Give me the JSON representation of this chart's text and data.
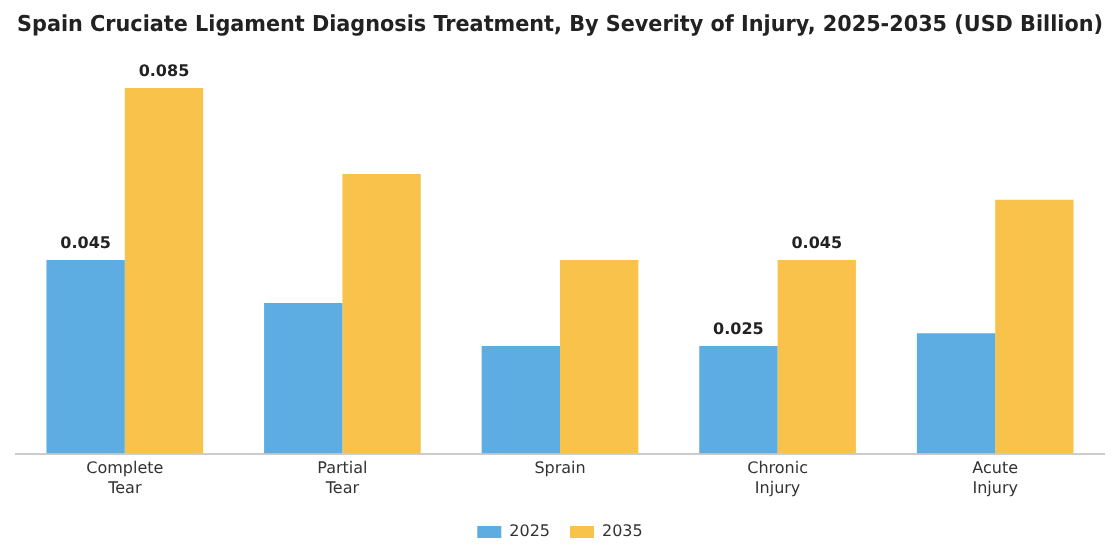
{
  "chart_data": {
    "type": "bar",
    "title": "Spain Cruciate Ligament Diagnosis Treatment, By Severity of Injury, 2025-2035 (USD Billion)",
    "categories": [
      "Complete\nTear",
      "Partial\nTear",
      "Sprain",
      "Chronic\nInjury",
      "Acute\nInjury"
    ],
    "series": [
      {
        "name": "2025",
        "color": "#5dade2",
        "values": [
          0.045,
          0.035,
          0.025,
          0.025,
          0.028
        ],
        "value_labels": [
          "0.045",
          null,
          null,
          "0.025",
          null
        ]
      },
      {
        "name": "2035",
        "color": "#f9c34b",
        "values": [
          0.085,
          0.065,
          0.045,
          0.045,
          0.059
        ],
        "value_labels": [
          "0.085",
          null,
          null,
          "0.045",
          null
        ]
      }
    ],
    "grid": false,
    "legend": "bottom",
    "tick_labels": "x"
  }
}
